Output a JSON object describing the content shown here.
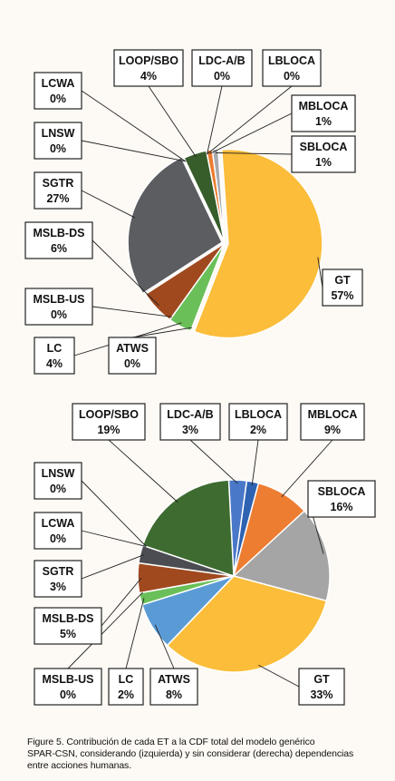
{
  "chart_data": [
    {
      "type": "pie",
      "title": "",
      "categories": [
        "GT",
        "ATWS",
        "LC",
        "MSLB-US",
        "MSLB-DS",
        "SGTR",
        "LNSW",
        "LCWA",
        "LOOP/SBO",
        "LDC-A/B",
        "LBLOCA",
        "MBLOCA",
        "SBLOCA"
      ],
      "values": [
        57,
        0,
        4,
        0,
        6,
        27,
        0,
        0,
        4,
        0,
        0,
        1,
        1
      ],
      "labels": [
        "57%",
        "0%",
        "4%",
        "0%",
        "6%",
        "27%",
        "0%",
        "0%",
        "4%",
        "0%",
        "0%",
        "1%",
        "1%"
      ],
      "colors": [
        "#fbbd3a",
        "#5b9bd5",
        "#6abf59",
        "#d0d0d0",
        "#a0491f",
        "#5b5d61",
        "#2f4e2a",
        "#264478",
        "#375d2a",
        "#2e62b2",
        "#5b9bd5",
        "#ed7d31",
        "#a8a9ad"
      ]
    },
    {
      "type": "pie",
      "title": "",
      "categories": [
        "LDC-A/B",
        "LBLOCA",
        "MBLOCA",
        "SBLOCA",
        "GT",
        "ATWS",
        "LC",
        "MSLB-US",
        "MSLB-DS",
        "SGTR",
        "LCWA",
        "LNSW",
        "LOOP/SBO"
      ],
      "values": [
        3,
        2,
        9,
        16,
        33,
        8,
        2,
        0,
        5,
        3,
        0,
        0,
        19
      ],
      "labels": [
        "3%",
        "2%",
        "9%",
        "16%",
        "33%",
        "8%",
        "2%",
        "0%",
        "5%",
        "3%",
        "0%",
        "0%",
        "19%"
      ],
      "colors": [
        "#4a78c8",
        "#2e62b2",
        "#ed7d31",
        "#a5a5a5",
        "#fbbd3a",
        "#5b9bd5",
        "#6abf59",
        "#d0d0d0",
        "#a0491f",
        "#4b4d52",
        "#264478",
        "#2f4e2a",
        "#3e6b30"
      ]
    }
  ],
  "caption": {
    "line1": "Figure 5.  Contribución de cada ET a la CDF total del modelo genérico",
    "line2": "SPAR-CSN, considerando (izquierda) y sin considerar (derecha) dependencias",
    "line3": "entre acciones humanas."
  }
}
